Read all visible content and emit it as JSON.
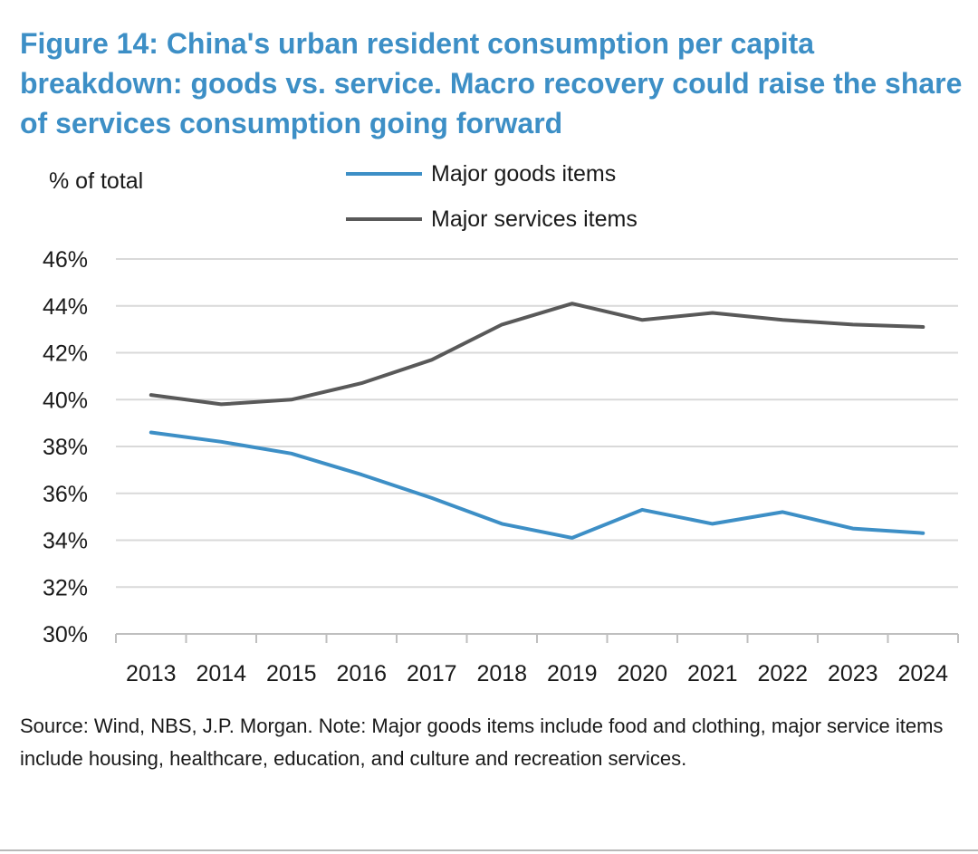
{
  "figure": {
    "title": "Figure 14: China's urban resident consumption per capita breakdown: goods vs. service. Macro recovery could raise the share of services consumption going forward",
    "source_note": "Source: Wind, NBS, J.P. Morgan. Note: Major goods items include food and clothing, major service items include housing, healthcare, education, and culture and recreation services."
  },
  "colors": {
    "title": "#3d8fc6",
    "goods": "#3d8fc6",
    "services": "#595959",
    "grid": "#d9d9d9",
    "axis": "#bfbfbf",
    "text": "#1a1a1a"
  },
  "chart_data": {
    "type": "line",
    "title": "",
    "xlabel": "",
    "ylabel": "% of total",
    "x": [
      2013,
      2014,
      2015,
      2016,
      2017,
      2018,
      2019,
      2020,
      2021,
      2022,
      2023,
      2024
    ],
    "y_ticks": [
      "30%",
      "32%",
      "34%",
      "36%",
      "38%",
      "40%",
      "42%",
      "44%",
      "46%"
    ],
    "ylim": [
      30,
      46
    ],
    "grid": true,
    "legend_position": "top",
    "series": [
      {
        "name": "Major goods items",
        "color": "#3d8fc6",
        "values": [
          38.6,
          38.2,
          37.7,
          36.8,
          35.8,
          34.7,
          34.1,
          35.3,
          34.7,
          35.2,
          34.5,
          34.3
        ]
      },
      {
        "name": "Major services items",
        "color": "#595959",
        "values": [
          40.2,
          39.8,
          40.0,
          40.7,
          41.7,
          43.2,
          44.1,
          43.4,
          43.7,
          43.4,
          43.2,
          43.1
        ]
      }
    ]
  }
}
